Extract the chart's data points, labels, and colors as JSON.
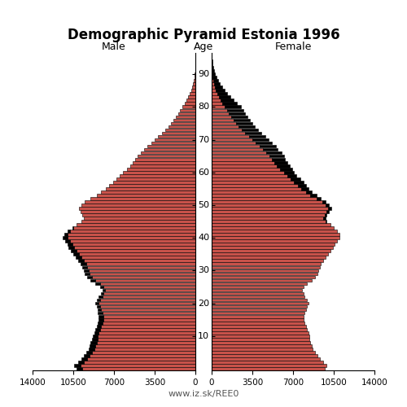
{
  "title": "Demographic Pyramid Estonia 1996",
  "male_label": "Male",
  "female_label": "Female",
  "age_label": "Age",
  "footer": "www.iz.sk/REE0",
  "xlim": 14000,
  "xticks": [
    0,
    3500,
    7000,
    10500,
    14000
  ],
  "ytick_vals": [
    10,
    20,
    30,
    40,
    50,
    60,
    70,
    80,
    90
  ],
  "bar_color": "#c8524a",
  "bar_edge_color": "#000000",
  "bar_linewidth": 0.4,
  "excess_color": "#000000",
  "male": [
    10200,
    10400,
    10100,
    9800,
    9600,
    9400,
    9200,
    9100,
    9000,
    8900,
    8800,
    8700,
    8600,
    8500,
    8400,
    8300,
    8300,
    8400,
    8400,
    8500,
    8600,
    8500,
    8300,
    8100,
    8000,
    8200,
    8600,
    9000,
    9300,
    9500,
    9600,
    9700,
    9900,
    10100,
    10300,
    10500,
    10700,
    10900,
    11000,
    11200,
    11400,
    11300,
    11000,
    10600,
    10200,
    9800,
    9600,
    9700,
    9900,
    10000,
    9800,
    9500,
    9000,
    8500,
    8100,
    7700,
    7400,
    7100,
    6800,
    6500,
    6200,
    5900,
    5600,
    5400,
    5200,
    5000,
    4700,
    4400,
    4100,
    3800,
    3500,
    3200,
    2900,
    2600,
    2300,
    2100,
    1900,
    1700,
    1500,
    1300,
    1100,
    900,
    750,
    600,
    470,
    360,
    270,
    190,
    130,
    85,
    55,
    34,
    20,
    11,
    6,
    3
  ],
  "female": [
    9700,
    9900,
    9600,
    9300,
    9100,
    8900,
    8700,
    8600,
    8500,
    8400,
    8400,
    8300,
    8200,
    8100,
    8000,
    7900,
    7900,
    8000,
    8100,
    8200,
    8300,
    8200,
    8000,
    7900,
    7800,
    7900,
    8200,
    8600,
    8900,
    9100,
    9200,
    9300,
    9400,
    9600,
    9800,
    10000,
    10200,
    10400,
    10600,
    10800,
    11000,
    11000,
    10800,
    10500,
    10200,
    9900,
    9800,
    9900,
    10100,
    10300,
    10100,
    9800,
    9400,
    9000,
    8600,
    8300,
    8100,
    7900,
    7600,
    7300,
    7100,
    6900,
    6700,
    6500,
    6300,
    6200,
    6000,
    5700,
    5500,
    5200,
    4900,
    4600,
    4300,
    4000,
    3700,
    3500,
    3300,
    3100,
    2900,
    2700,
    2500,
    2200,
    1900,
    1600,
    1350,
    1100,
    900,
    720,
    570,
    430,
    310,
    210,
    135,
    82,
    46,
    25
  ],
  "ages": [
    0,
    1,
    2,
    3,
    4,
    5,
    6,
    7,
    8,
    9,
    10,
    11,
    12,
    13,
    14,
    15,
    16,
    17,
    18,
    19,
    20,
    21,
    22,
    23,
    24,
    25,
    26,
    27,
    28,
    29,
    30,
    31,
    32,
    33,
    34,
    35,
    36,
    37,
    38,
    39,
    40,
    41,
    42,
    43,
    44,
    45,
    46,
    47,
    48,
    49,
    50,
    51,
    52,
    53,
    54,
    55,
    56,
    57,
    58,
    59,
    60,
    61,
    62,
    63,
    64,
    65,
    66,
    67,
    68,
    69,
    70,
    71,
    72,
    73,
    74,
    75,
    76,
    77,
    78,
    79,
    80,
    81,
    82,
    83,
    84,
    85,
    86,
    87,
    88,
    89,
    90,
    91,
    92,
    93,
    94,
    95
  ]
}
